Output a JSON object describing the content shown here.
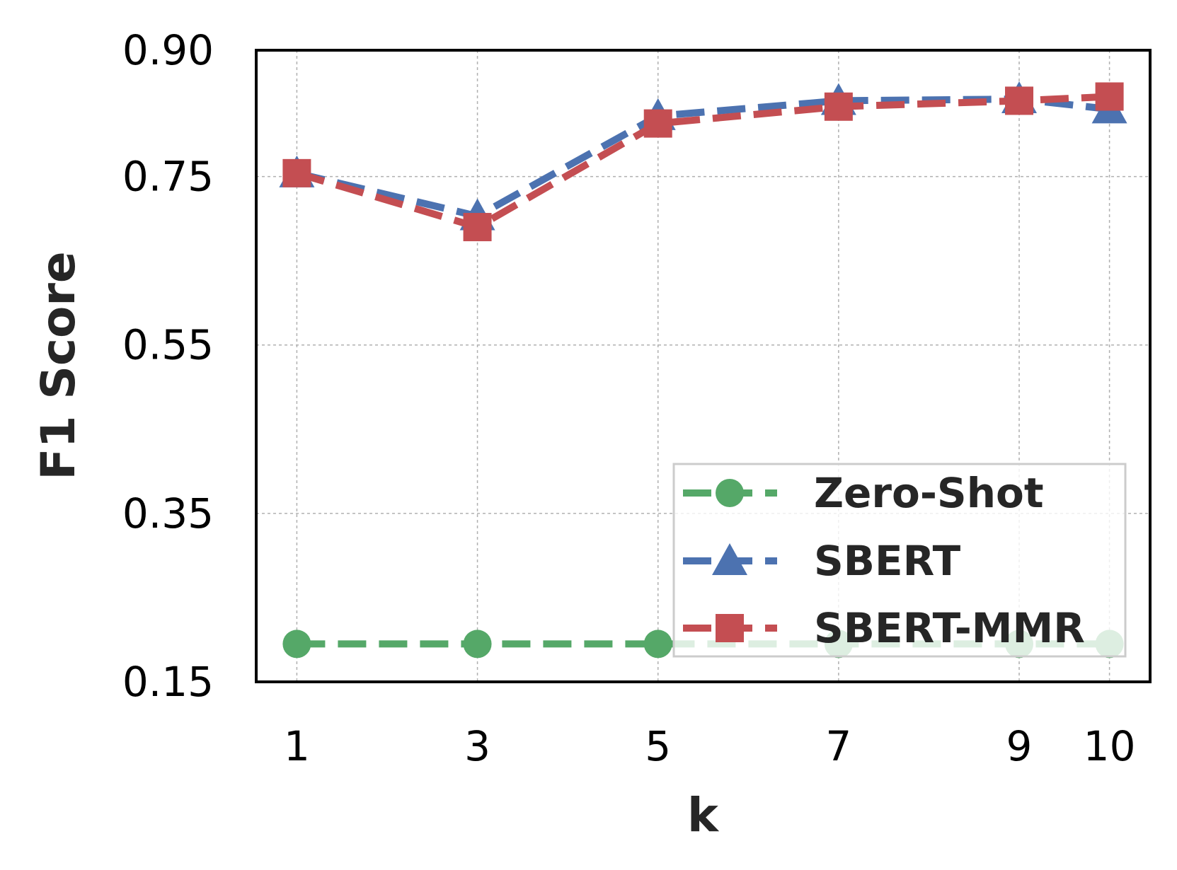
{
  "chart_data": {
    "type": "line",
    "x": [
      1,
      3,
      5,
      7,
      9,
      10
    ],
    "x_ticks": [
      "1",
      "3",
      "5",
      "7",
      "9",
      "10"
    ],
    "y_ticks": [
      "0.15",
      "0.35",
      "0.55",
      "0.75",
      "0.90"
    ],
    "y_tick_values": [
      0.15,
      0.35,
      0.55,
      0.75,
      0.9
    ],
    "xlim": [
      0.55,
      10.45
    ],
    "ylim": [
      0.15,
      0.9
    ],
    "xlabel": "k",
    "ylabel": "F1 Score",
    "grid": true,
    "legend_position": "bottom-right",
    "series": [
      {
        "name": "Zero-Shot",
        "values": [
          0.195,
          0.195,
          0.195,
          0.195,
          0.195,
          0.195
        ],
        "color": "#55a868",
        "marker": "circle"
      },
      {
        "name": "SBERT",
        "values": [
          0.754,
          0.703,
          0.822,
          0.84,
          0.842,
          0.83
        ],
        "color": "#4c72b0",
        "marker": "triangle"
      },
      {
        "name": "SBERT-MMR",
        "values": [
          0.754,
          0.69,
          0.813,
          0.833,
          0.84,
          0.845
        ],
        "color": "#c44e52",
        "marker": "square"
      }
    ]
  }
}
